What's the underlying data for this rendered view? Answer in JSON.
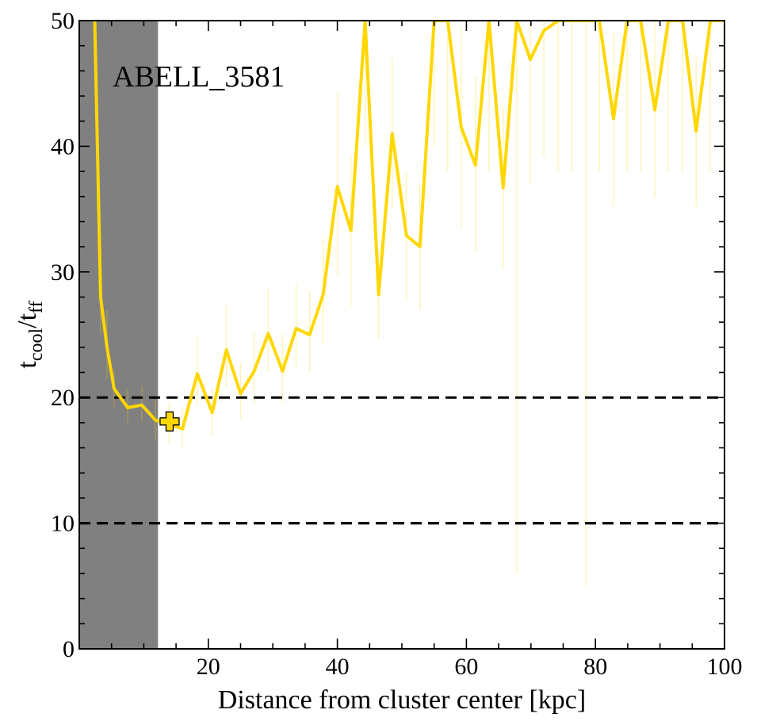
{
  "chart_data": {
    "type": "line",
    "annotation": "ABELL_3581",
    "xlabel": "Distance from cluster center [kpc]",
    "ylabel": {
      "base": "t",
      "sub1": "cool",
      "slash": "/t",
      "sub2": "ff"
    },
    "xlim": [
      0,
      100
    ],
    "ylim": [
      0,
      50
    ],
    "xticks": [
      20,
      40,
      60,
      80,
      100
    ],
    "yticks": [
      0,
      10,
      20,
      30,
      40,
      50
    ],
    "minor_ticks": true,
    "ticks_direction": "in",
    "grid": false,
    "shaded_region": {
      "x0": 0,
      "x1": 12.2,
      "color": "#808080"
    },
    "hlines": [
      {
        "y": 20,
        "style": "dashed",
        "color": "#000000"
      },
      {
        "y": 10,
        "style": "dashed",
        "color": "#000000"
      }
    ],
    "series": [
      {
        "color": "#FFD700",
        "x": [
          2.4,
          3.3,
          4.3,
          5.4,
          7.5,
          9.7,
          11.8,
          13.9,
          16.0,
          18.3,
          20.6,
          22.8,
          25.0,
          27.1,
          29.3,
          31.5,
          33.6,
          35.7,
          37.8,
          40.0,
          42.1,
          44.3,
          46.4,
          48.5,
          50.7,
          52.8,
          55.0,
          57.1,
          59.2,
          61.4,
          63.5,
          65.7,
          67.8,
          69.9,
          72.0,
          74.2,
          76.3,
          78.5,
          80.6,
          82.8,
          84.9,
          87.0,
          89.2,
          91.3,
          93.5,
          95.6,
          97.8,
          99.9
        ],
        "y": [
          50,
          28.0,
          24.0,
          20.7,
          19.2,
          19.4,
          18.2,
          17.9,
          17.5,
          21.9,
          18.8,
          23.8,
          20.3,
          22.1,
          25.1,
          22.1,
          25.5,
          25.0,
          28.2,
          36.8,
          33.3,
          50,
          28.2,
          41.0,
          32.9,
          32.0,
          50,
          50,
          41.5,
          38.5,
          50,
          36.7,
          50,
          46.9,
          49.2,
          50,
          50,
          50,
          50,
          42.2,
          50,
          50,
          42.9,
          50,
          50,
          41.2,
          50,
          50
        ],
        "err_low": [
          null,
          3.0,
          2.5,
          1.5,
          1.2,
          1.3,
          1.5,
          1.6,
          1.5,
          2.5,
          1.8,
          3.0,
          2.0,
          2.5,
          3.0,
          2.5,
          3.0,
          3.0,
          4.0,
          7.0,
          6.0,
          10.0,
          3.5,
          6.0,
          5.0,
          5.0,
          10.0,
          12.0,
          8.0,
          7.0,
          12.0,
          6.5,
          44.0,
          10.0,
          10.0,
          12.0,
          12.0,
          45.0,
          12.0,
          7.0,
          12.0,
          12.0,
          7.0,
          12.0,
          12.0,
          6.0,
          12.0,
          12.0
        ],
        "err_high": [
          null,
          3.5,
          3.0,
          1.5,
          1.5,
          1.5,
          1.5,
          1.7,
          1.6,
          3.0,
          2.0,
          3.5,
          2.5,
          3.0,
          3.5,
          3.0,
          3.5,
          3.5,
          4.5,
          7.5,
          6.0,
          10.0,
          3.5,
          6.0,
          5.0,
          5.0,
          10.0,
          10.0,
          8.0,
          7.0,
          10.0,
          6.5,
          10.0,
          10.0,
          10.0,
          10.0,
          10.0,
          10.0,
          10.0,
          7.0,
          10.0,
          10.0,
          7.0,
          10.0,
          10.0,
          6.0,
          10.0,
          10.0
        ]
      }
    ],
    "marker": {
      "x": 14.0,
      "y": 18.1,
      "shape": "plus",
      "fill": "#FFD700",
      "edge": "#000000"
    }
  }
}
